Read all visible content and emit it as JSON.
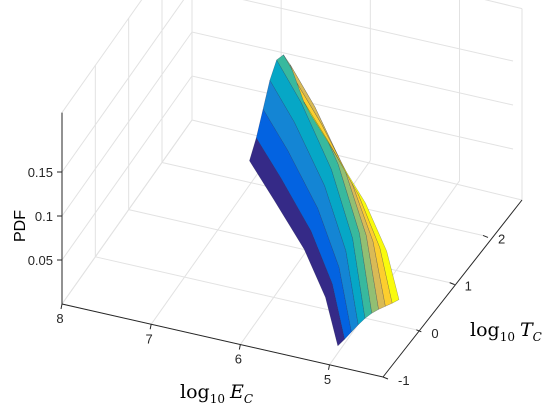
{
  "chart_data": {
    "type": "surface",
    "title": "",
    "zlabel": "PDF",
    "xlabel": {
      "prefix": "log",
      "base": "10",
      "var": "E",
      "sub": "C"
    },
    "ylabel": {
      "prefix": "log",
      "base": "10",
      "var": "T",
      "sub": "C"
    },
    "x_ticks": [
      "8",
      "7",
      "6",
      "5"
    ],
    "y_ticks": [
      "-1",
      "0",
      "1",
      "2"
    ],
    "z_ticks": [
      "0.05",
      "0.1",
      "0.15"
    ],
    "xlim": [
      4.4,
      8
    ],
    "ylim": [
      -1,
      2.9
    ],
    "zlim": [
      0,
      0.15
    ],
    "grid": true,
    "colormap": "parula",
    "surface": {
      "description": "Narrow ridge of log-probability density along the line where log10 E_C and log10 T_C co-vary",
      "ridge": [
        {
          "x": 6.9,
          "y": 2.6,
          "z": 0.115
        },
        {
          "x": 6.4,
          "y": 2.0,
          "z": 0.11
        },
        {
          "x": 5.8,
          "y": 1.3,
          "z": 0.085
        },
        {
          "x": 5.3,
          "y": 0.6,
          "z": 0.055
        },
        {
          "x": 4.9,
          "y": -0.1,
          "z": 0.01
        }
      ]
    }
  }
}
